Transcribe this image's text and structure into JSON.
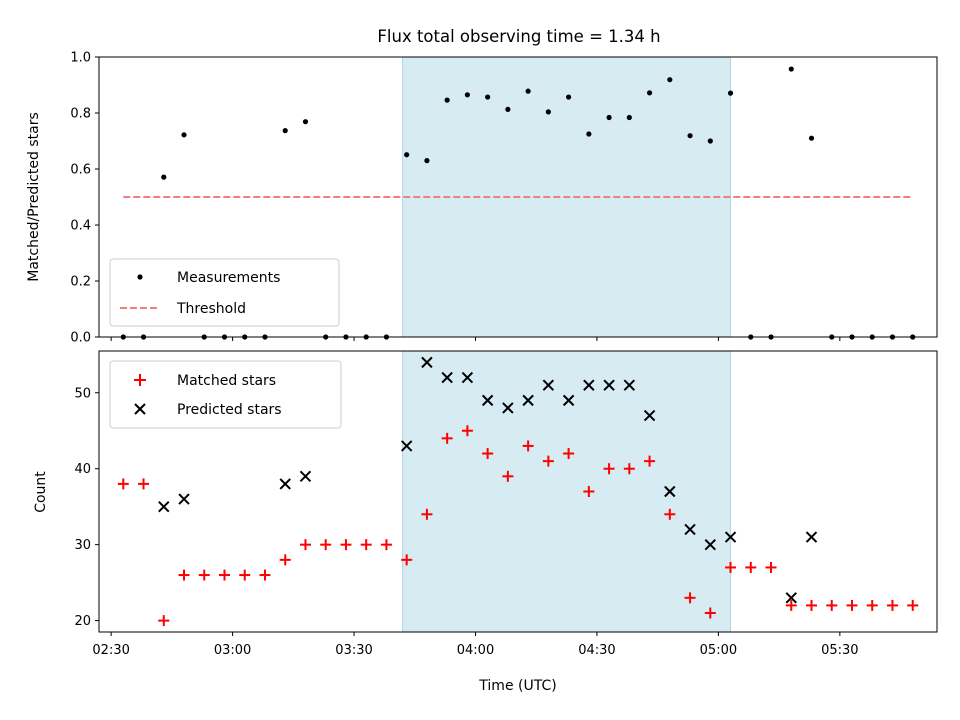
{
  "chart_data": [
    {
      "type": "scatter",
      "title": "Flux total observing time = 1.34 h",
      "ylabel": "Matched/Predicted stars",
      "xlim": [
        "02:27",
        "05:54"
      ],
      "ylim": [
        0,
        1.0
      ],
      "yticks": [
        "0.0",
        "0.2",
        "0.4",
        "0.6",
        "0.8",
        "1.0"
      ],
      "shaded_interval": [
        "03:42",
        "05:03"
      ],
      "shade_color": "#add8e6",
      "legend": {
        "position": "lower-left",
        "entries": [
          "Measurements",
          "Threshold"
        ]
      },
      "threshold": {
        "name": "Threshold",
        "value": 0.5,
        "x": [
          "02:33",
          "05:48"
        ],
        "color": "#f08080"
      },
      "series": [
        {
          "name": "Measurements",
          "color": "#000000",
          "x": [
            "02:33",
            "02:38",
            "02:43",
            "02:48",
            "02:53",
            "02:58",
            "03:03",
            "03:08",
            "03:13",
            "03:18",
            "03:23",
            "03:28",
            "03:33",
            "03:38",
            "03:43",
            "03:48",
            "03:53",
            "03:58",
            "04:03",
            "04:08",
            "04:13",
            "04:18",
            "04:23",
            "04:28",
            "04:33",
            "04:38",
            "04:43",
            "04:48",
            "04:53",
            "04:58",
            "05:03",
            "05:08",
            "05:13",
            "05:18",
            "05:23",
            "05:28",
            "05:33",
            "05:38",
            "05:43",
            "05:48"
          ],
          "y": [
            0,
            0,
            0.571,
            0.722,
            0,
            0,
            0,
            0,
            0.737,
            0.769,
            0,
            0,
            0,
            0,
            0.651,
            0.63,
            0.846,
            0.865,
            0.857,
            0.813,
            0.878,
            0.804,
            0.857,
            0.725,
            0.784,
            0.784,
            0.872,
            0.919,
            0.719,
            0.7,
            0.871,
            0,
            0,
            0.957,
            0.71,
            0,
            0,
            0,
            0,
            0
          ]
        }
      ]
    },
    {
      "type": "scatter",
      "xlabel": "Time (UTC)",
      "ylabel": "Count",
      "xlim": [
        "02:27",
        "05:54"
      ],
      "ylim": [
        18.5,
        55.5
      ],
      "yticks": [
        "20",
        "30",
        "40",
        "50"
      ],
      "xticks": [
        "02:30",
        "03:00",
        "03:30",
        "04:00",
        "04:30",
        "05:00",
        "05:30"
      ],
      "shaded_interval": [
        "03:42",
        "05:03"
      ],
      "legend": {
        "position": "upper-left",
        "entries": [
          "Matched stars",
          "Predicted stars"
        ]
      },
      "series": [
        {
          "name": "Matched stars",
          "marker": "+",
          "color": "#ff0000",
          "x": [
            "02:33",
            "02:38",
            "02:43",
            "02:48",
            "02:53",
            "02:58",
            "03:03",
            "03:08",
            "03:13",
            "03:18",
            "03:23",
            "03:28",
            "03:33",
            "03:38",
            "03:43",
            "03:48",
            "03:53",
            "03:58",
            "04:03",
            "04:08",
            "04:13",
            "04:18",
            "04:23",
            "04:28",
            "04:33",
            "04:38",
            "04:43",
            "04:48",
            "04:53",
            "04:58",
            "05:03",
            "05:08",
            "05:13",
            "05:18",
            "05:23",
            "05:28",
            "05:33",
            "05:38",
            "05:43",
            "05:48"
          ],
          "y": [
            38,
            38,
            20,
            26,
            26,
            26,
            26,
            26,
            28,
            30,
            30,
            30,
            30,
            30,
            28,
            34,
            44,
            45,
            42,
            39,
            43,
            41,
            42,
            37,
            40,
            40,
            41,
            34,
            23,
            21,
            27,
            27,
            27,
            22,
            22,
            22,
            22,
            22,
            22,
            22
          ]
        },
        {
          "name": "Predicted stars",
          "marker": "x",
          "color": "#000000",
          "x": [
            "02:43",
            "02:48",
            "03:13",
            "03:18",
            "03:43",
            "03:48",
            "03:53",
            "03:58",
            "04:03",
            "04:08",
            "04:13",
            "04:18",
            "04:23",
            "04:28",
            "04:33",
            "04:38",
            "04:43",
            "04:48",
            "04:53",
            "04:58",
            "05:03",
            "05:18",
            "05:23"
          ],
          "y": [
            35,
            36,
            38,
            39,
            43,
            54,
            52,
            52,
            49,
            48,
            49,
            51,
            49,
            51,
            51,
            51,
            47,
            37,
            32,
            30,
            31,
            23,
            31
          ]
        }
      ]
    }
  ]
}
